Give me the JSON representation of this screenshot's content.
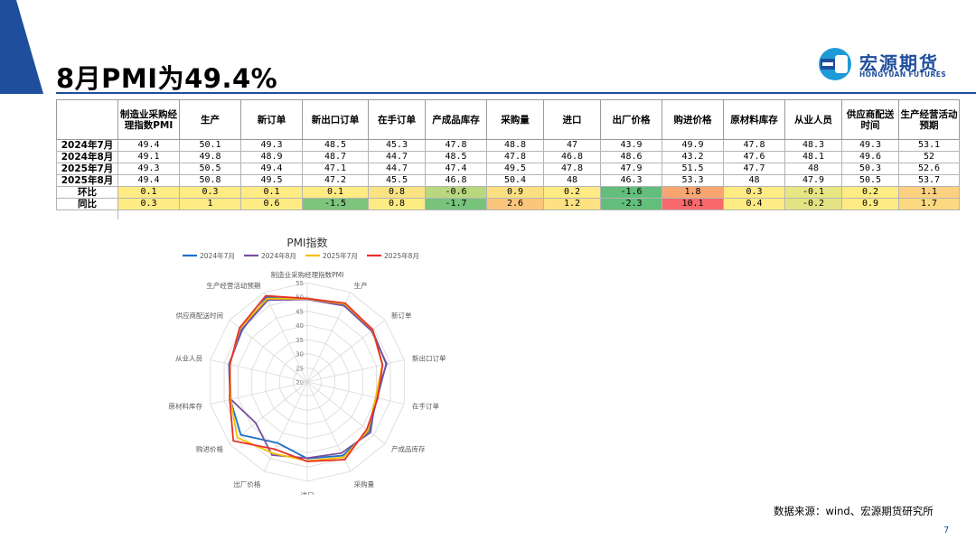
{
  "slide": {
    "title": "8月PMI为49.4%",
    "page_number": "7",
    "source_note": "数据来源：wind、宏源期货研究所"
  },
  "brand": {
    "name_cn": "宏源期货",
    "name_en": "HONGYUAN FUTURES",
    "primary_color": "#1F4E9C",
    "accent_color": "#1E9BD7"
  },
  "table": {
    "headers": [
      "",
      "制造业采购经理指数PMI",
      "生产",
      "新订单",
      "新出口订单",
      "在手订单",
      "产成品库存",
      "采购量",
      "进口",
      "出厂价格",
      "购进价格",
      "原材料库存",
      "从业人员",
      "供应商配送时间",
      "生产经营活动预期"
    ],
    "rows": [
      {
        "label": "2024年7月",
        "values": [
          "49.4",
          "50.1",
          "49.3",
          "48.5",
          "45.3",
          "47.8",
          "48.8",
          "47",
          "43.9",
          "49.9",
          "47.8",
          "48.3",
          "49.3",
          "53.1"
        ]
      },
      {
        "label": "2024年8月",
        "values": [
          "49.1",
          "49.8",
          "48.9",
          "48.7",
          "44.7",
          "48.5",
          "47.8",
          "46.8",
          "48.6",
          "43.2",
          "47.6",
          "48.1",
          "49.6",
          "52"
        ]
      },
      {
        "label": "2025年7月",
        "values": [
          "49.3",
          "50.5",
          "49.4",
          "47.1",
          "44.7",
          "47.4",
          "49.5",
          "47.8",
          "47.9",
          "51.5",
          "47.7",
          "48",
          "50.3",
          "52.6"
        ]
      },
      {
        "label": "2025年8月",
        "values": [
          "49.4",
          "50.8",
          "49.5",
          "47.2",
          "45.5",
          "46.8",
          "50.4",
          "48",
          "46.3",
          "53.3",
          "48",
          "47.9",
          "50.5",
          "53.7"
        ]
      },
      {
        "label": "环比",
        "values": [
          "0.1",
          "0.3",
          "0.1",
          "0.1",
          "0.8",
          "-0.6",
          "0.9",
          "0.2",
          "-1.6",
          "1.8",
          "0.3",
          "-0.1",
          "0.2",
          "1.1"
        ],
        "colors": [
          "#FFEB84",
          "#FFEB84",
          "#FFEB84",
          "#FFEB84",
          "#FBE383",
          "#B9D77E",
          "#FBE082",
          "#FFEB84",
          "#63BE7B",
          "#F8A56F",
          "#FFEB84",
          "#E8E583",
          "#FFEB84",
          "#FBD17F"
        ]
      },
      {
        "label": "同比",
        "values": [
          "0.3",
          "1",
          "0.6",
          "-1.5",
          "0.8",
          "-1.7",
          "2.6",
          "1.2",
          "-2.3",
          "10.1",
          "0.4",
          "-0.2",
          "0.9",
          "1.7"
        ],
        "colors": [
          "#FFEB84",
          "#FFEB84",
          "#FFEB84",
          "#7DC57C",
          "#FFEB84",
          "#77C37C",
          "#FBC57C",
          "#FEE282",
          "#63BE7B",
          "#F8696B",
          "#FFEB84",
          "#E4E383",
          "#FFEB84",
          "#FCD880"
        ]
      }
    ]
  },
  "chart_data": {
    "type": "radar",
    "title": "PMI指数",
    "categories": [
      "制造业采购经理指数PMI",
      "生产",
      "新订单",
      "新出口订单",
      "在手订单",
      "产成品库存",
      "采购量",
      "进口",
      "出厂价格",
      "购进价格",
      "原材料库存",
      "从业人员",
      "供应商配送时间",
      "生产经营活动预期"
    ],
    "r_ticks": [
      "20",
      "25",
      "30",
      "35",
      "40",
      "45",
      "50",
      "55"
    ],
    "rlim": [
      20,
      55
    ],
    "legend_position": "top",
    "series": [
      {
        "name": "2024年7月",
        "color": "#1F6FC5",
        "values": [
          49.4,
          50.1,
          49.3,
          48.5,
          45.3,
          47.8,
          48.8,
          47,
          43.9,
          49.9,
          47.8,
          48.3,
          49.3,
          53.1
        ]
      },
      {
        "name": "2024年8月",
        "color": "#7B4FA0",
        "values": [
          49.1,
          49.8,
          48.9,
          48.7,
          44.7,
          48.5,
          47.8,
          46.8,
          48.6,
          43.2,
          47.6,
          48.1,
          49.6,
          52
        ]
      },
      {
        "name": "2025年7月",
        "color": "#F2C200",
        "values": [
          49.3,
          50.5,
          49.4,
          47.1,
          44.7,
          47.4,
          49.5,
          47.8,
          47.9,
          51.5,
          47.7,
          48,
          50.3,
          52.6
        ]
      },
      {
        "name": "2025年8月",
        "color": "#E8312A",
        "values": [
          49.4,
          50.8,
          49.5,
          47.2,
          45.5,
          46.8,
          50.4,
          48,
          46.3,
          53.3,
          48,
          47.9,
          50.5,
          53.7
        ]
      }
    ]
  }
}
